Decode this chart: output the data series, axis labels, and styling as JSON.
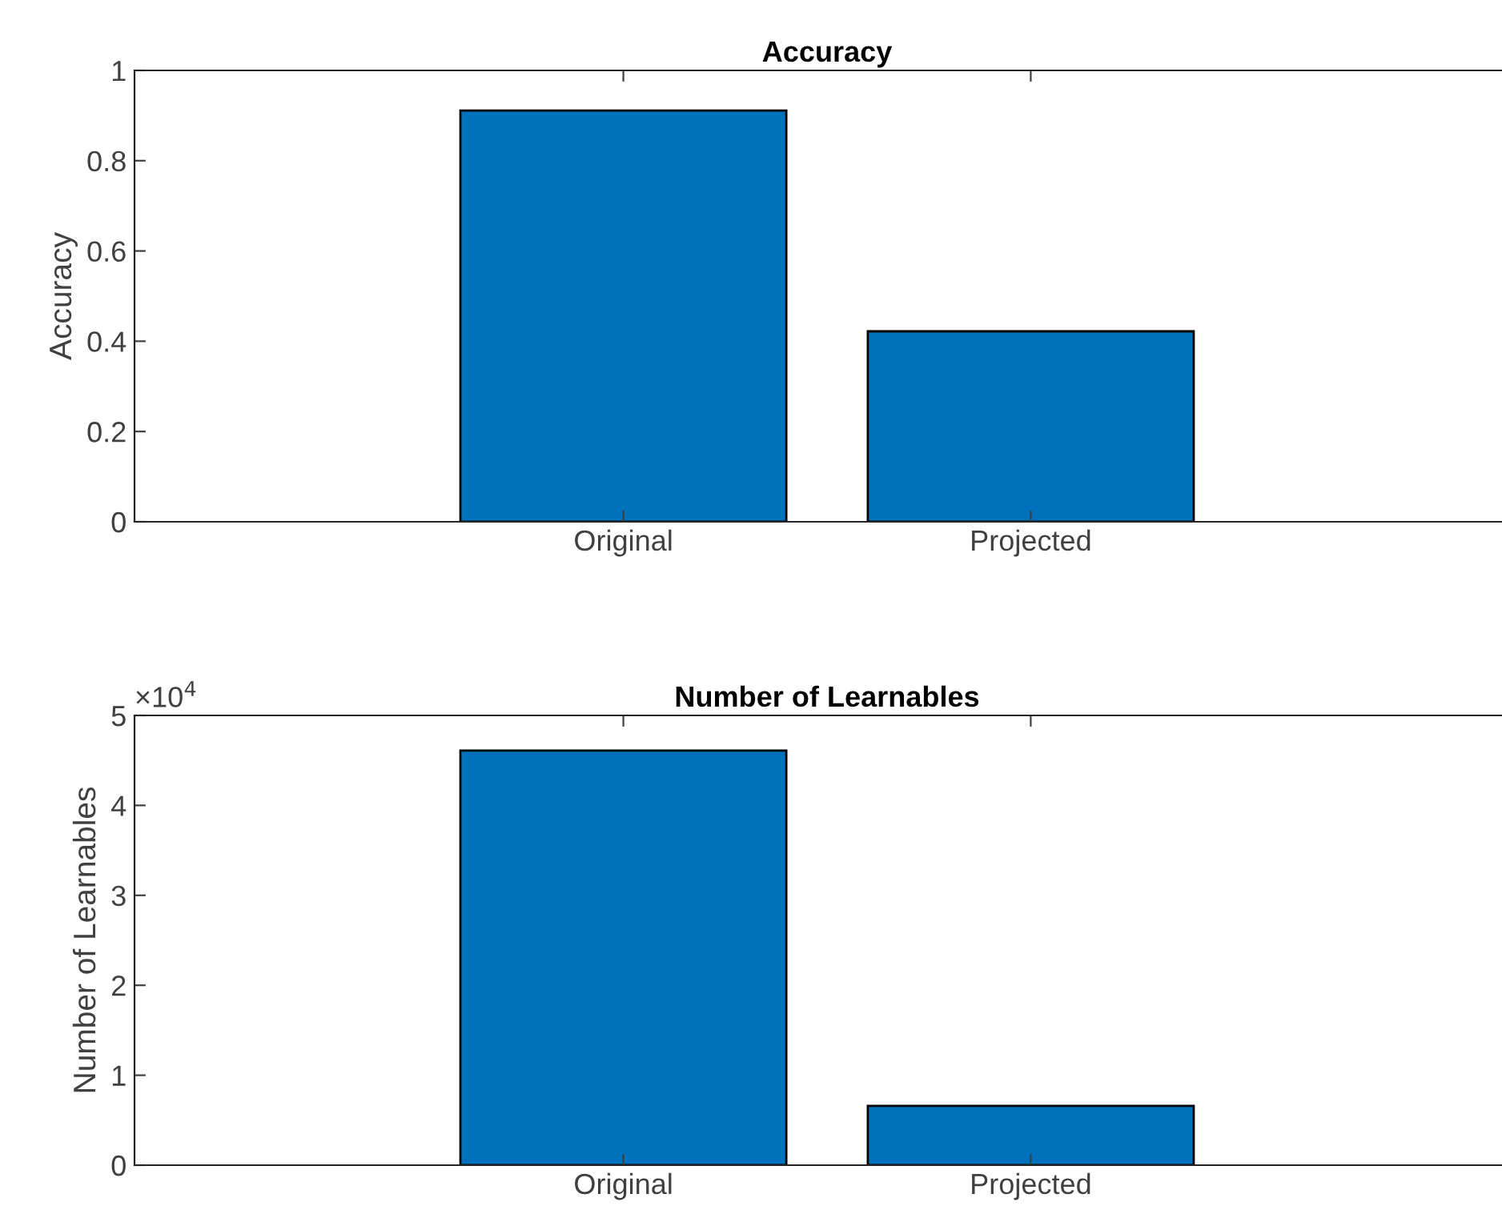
{
  "chart_data": [
    {
      "type": "bar",
      "title": "Accuracy",
      "ylabel": "Accuracy",
      "categories": [
        "Original",
        "Projected"
      ],
      "values": [
        0.911,
        0.422
      ],
      "color": "#0072bd",
      "ylim": [
        0,
        1
      ],
      "yticks": [
        0,
        0.2,
        0.4,
        0.6,
        0.8,
        1
      ],
      "grid": false
    },
    {
      "type": "bar",
      "title": "Number of Learnables",
      "ylabel": "Number of Learnables",
      "categories": [
        "Original",
        "Projected"
      ],
      "values": [
        4.61,
        0.66
      ],
      "color": "#0072bd",
      "ylim": [
        0,
        5
      ],
      "yticks": [
        0,
        1,
        2,
        3,
        4,
        5
      ],
      "grid": false,
      "annotations": [
        "×10$^{4}$"
      ]
    }
  ]
}
